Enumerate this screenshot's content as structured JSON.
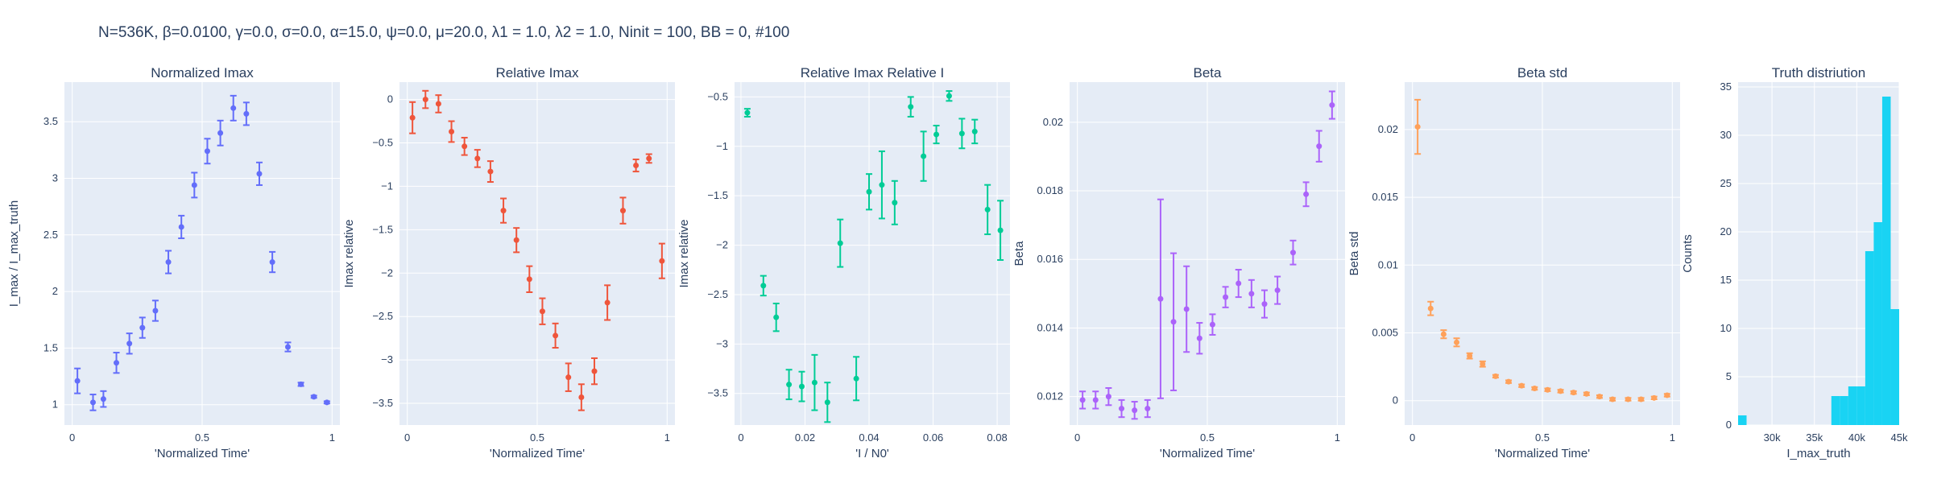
{
  "figure": {
    "title": "N=536K, β=0.0100, γ=0.0, σ=0.0,  α=15.0, ψ=0.0, μ=20.0, λ1 = 1.0, λ2 = 1.0, Ninit = 100, BB = 0, #100",
    "plot_bgcolor": "#e5ecf6",
    "grid_color": "#ffffff"
  },
  "chart_data": [
    {
      "type": "scatter",
      "title": "Normalized Imax",
      "xlabel": "'Normalized Time'",
      "ylabel": "I_max / I_max_truth",
      "color": "#636efa",
      "xlim": [
        -0.03,
        1.03
      ],
      "ylim": [
        0.82,
        3.85
      ],
      "xticks": [
        0,
        0.5,
        1
      ],
      "xtick_labels": [
        "0",
        "0.5",
        "1"
      ],
      "yticks": [
        1,
        1.5,
        2,
        2.5,
        3,
        3.5
      ],
      "ytick_labels": [
        "1",
        "1.5",
        "2",
        "2.5",
        "3",
        "3.5"
      ],
      "points": [
        {
          "x": 0.02,
          "y": 1.21,
          "err": 0.11
        },
        {
          "x": 0.08,
          "y": 1.02,
          "err": 0.07
        },
        {
          "x": 0.12,
          "y": 1.05,
          "err": 0.07
        },
        {
          "x": 0.17,
          "y": 1.37,
          "err": 0.09
        },
        {
          "x": 0.22,
          "y": 1.54,
          "err": 0.09
        },
        {
          "x": 0.27,
          "y": 1.68,
          "err": 0.09
        },
        {
          "x": 0.32,
          "y": 1.83,
          "err": 0.09
        },
        {
          "x": 0.37,
          "y": 2.26,
          "err": 0.1
        },
        {
          "x": 0.42,
          "y": 2.57,
          "err": 0.1
        },
        {
          "x": 0.47,
          "y": 2.94,
          "err": 0.11
        },
        {
          "x": 0.52,
          "y": 3.24,
          "err": 0.11
        },
        {
          "x": 0.57,
          "y": 3.4,
          "err": 0.11
        },
        {
          "x": 0.62,
          "y": 3.62,
          "err": 0.11
        },
        {
          "x": 0.67,
          "y": 3.57,
          "err": 0.1
        },
        {
          "x": 0.72,
          "y": 3.04,
          "err": 0.1
        },
        {
          "x": 0.77,
          "y": 2.26,
          "err": 0.09
        },
        {
          "x": 0.83,
          "y": 1.51,
          "err": 0.04
        },
        {
          "x": 0.88,
          "y": 1.18,
          "err": 0.015
        },
        {
          "x": 0.93,
          "y": 1.07,
          "err": 0.01
        },
        {
          "x": 0.98,
          "y": 1.02,
          "err": 0.01
        }
      ]
    },
    {
      "type": "scatter",
      "title": "Relative Imax",
      "xlabel": "'Normalized Time'",
      "ylabel": "Imax relative",
      "color": "#ef553b",
      "xlim": [
        -0.03,
        1.03
      ],
      "ylim": [
        -3.75,
        0.2
      ],
      "xticks": [
        0,
        0.5,
        1
      ],
      "xtick_labels": [
        "0",
        "0.5",
        "1"
      ],
      "yticks": [
        0,
        -0.5,
        -1,
        -1.5,
        -2,
        -2.5,
        -3,
        -3.5
      ],
      "ytick_labels": [
        "0",
        "−0.5",
        "−1",
        "−1.5",
        "−2",
        "−2.5",
        "−3",
        "−3.5"
      ],
      "points": [
        {
          "x": 0.02,
          "y": -0.21,
          "err": 0.18
        },
        {
          "x": 0.07,
          "y": 0.0,
          "err": 0.1
        },
        {
          "x": 0.12,
          "y": -0.05,
          "err": 0.1
        },
        {
          "x": 0.17,
          "y": -0.37,
          "err": 0.12
        },
        {
          "x": 0.22,
          "y": -0.54,
          "err": 0.1
        },
        {
          "x": 0.27,
          "y": -0.68,
          "err": 0.1
        },
        {
          "x": 0.32,
          "y": -0.83,
          "err": 0.12
        },
        {
          "x": 0.37,
          "y": -1.28,
          "err": 0.14
        },
        {
          "x": 0.42,
          "y": -1.62,
          "err": 0.14
        },
        {
          "x": 0.47,
          "y": -2.07,
          "err": 0.15
        },
        {
          "x": 0.52,
          "y": -2.44,
          "err": 0.15
        },
        {
          "x": 0.57,
          "y": -2.72,
          "err": 0.14
        },
        {
          "x": 0.62,
          "y": -3.2,
          "err": 0.16
        },
        {
          "x": 0.67,
          "y": -3.43,
          "err": 0.15
        },
        {
          "x": 0.72,
          "y": -3.13,
          "err": 0.15
        },
        {
          "x": 0.77,
          "y": -2.34,
          "err": 0.2
        },
        {
          "x": 0.83,
          "y": -1.28,
          "err": 0.15
        },
        {
          "x": 0.88,
          "y": -0.76,
          "err": 0.07
        },
        {
          "x": 0.93,
          "y": -0.68,
          "err": 0.05
        },
        {
          "x": 0.98,
          "y": -1.86,
          "err": 0.2
        }
      ]
    },
    {
      "type": "scatter",
      "title": "Relative Imax Relative I",
      "xlabel": "'I / N0'",
      "ylabel": "Imax relative",
      "color": "#00cc96",
      "xlim": [
        -0.002,
        0.084
      ],
      "ylim": [
        -3.82,
        -0.35
      ],
      "xticks": [
        0,
        0.02,
        0.04,
        0.06,
        0.08
      ],
      "xtick_labels": [
        "0",
        "0.02",
        "0.04",
        "0.06",
        "0.08"
      ],
      "yticks": [
        -0.5,
        -1,
        -1.5,
        -2,
        -2.5,
        -3,
        -3.5
      ],
      "ytick_labels": [
        "−0.5",
        "−1",
        "−1.5",
        "−2",
        "−2.5",
        "−3",
        "−3.5"
      ],
      "points": [
        {
          "x": 0.002,
          "y": -0.66,
          "err": 0.04
        },
        {
          "x": 0.007,
          "y": -2.41,
          "err": 0.1
        },
        {
          "x": 0.011,
          "y": -2.73,
          "err": 0.14
        },
        {
          "x": 0.015,
          "y": -3.41,
          "err": 0.15
        },
        {
          "x": 0.019,
          "y": -3.43,
          "err": 0.15
        },
        {
          "x": 0.023,
          "y": -3.39,
          "err": 0.28
        },
        {
          "x": 0.027,
          "y": -3.59,
          "err": 0.2
        },
        {
          "x": 0.031,
          "y": -1.98,
          "err": 0.24
        },
        {
          "x": 0.036,
          "y": -3.35,
          "err": 0.22
        },
        {
          "x": 0.04,
          "y": -1.46,
          "err": 0.18
        },
        {
          "x": 0.044,
          "y": -1.39,
          "err": 0.34
        },
        {
          "x": 0.048,
          "y": -1.57,
          "err": 0.22
        },
        {
          "x": 0.053,
          "y": -0.6,
          "err": 0.1
        },
        {
          "x": 0.057,
          "y": -1.1,
          "err": 0.25
        },
        {
          "x": 0.061,
          "y": -0.88,
          "err": 0.09
        },
        {
          "x": 0.065,
          "y": -0.49,
          "err": 0.05
        },
        {
          "x": 0.069,
          "y": -0.87,
          "err": 0.15
        },
        {
          "x": 0.073,
          "y": -0.85,
          "err": 0.12
        },
        {
          "x": 0.077,
          "y": -1.64,
          "err": 0.25
        },
        {
          "x": 0.081,
          "y": -1.85,
          "err": 0.3
        }
      ]
    },
    {
      "type": "scatter",
      "title": "Beta",
      "xlabel": "'Normalized Time'",
      "ylabel": "Beta",
      "color": "#ab63fa",
      "xlim": [
        -0.03,
        1.03
      ],
      "ylim": [
        0.01117,
        0.02117
      ],
      "xticks": [
        0,
        0.5,
        1
      ],
      "xtick_labels": [
        "0",
        "0.5",
        "1"
      ],
      "yticks": [
        0.012,
        0.014,
        0.016,
        0.018,
        0.02
      ],
      "ytick_labels": [
        "0.012",
        "0.014",
        "0.016",
        "0.018",
        "0.02"
      ],
      "points": [
        {
          "x": 0.02,
          "y": 0.0119,
          "err": 0.00025
        },
        {
          "x": 0.07,
          "y": 0.0119,
          "err": 0.00025
        },
        {
          "x": 0.12,
          "y": 0.012,
          "err": 0.00025
        },
        {
          "x": 0.17,
          "y": 0.01165,
          "err": 0.00025
        },
        {
          "x": 0.22,
          "y": 0.0116,
          "err": 0.00025
        },
        {
          "x": 0.27,
          "y": 0.01165,
          "err": 0.00025
        },
        {
          "x": 0.32,
          "y": 0.01485,
          "err": 0.0029
        },
        {
          "x": 0.37,
          "y": 0.01418,
          "err": 0.002
        },
        {
          "x": 0.42,
          "y": 0.01455,
          "err": 0.00125
        },
        {
          "x": 0.47,
          "y": 0.0137,
          "err": 0.00045
        },
        {
          "x": 0.52,
          "y": 0.0141,
          "err": 0.0003
        },
        {
          "x": 0.57,
          "y": 0.0149,
          "err": 0.0003
        },
        {
          "x": 0.62,
          "y": 0.0153,
          "err": 0.0004
        },
        {
          "x": 0.67,
          "y": 0.015,
          "err": 0.0004
        },
        {
          "x": 0.72,
          "y": 0.0147,
          "err": 0.0004
        },
        {
          "x": 0.77,
          "y": 0.0151,
          "err": 0.0004
        },
        {
          "x": 0.83,
          "y": 0.0162,
          "err": 0.00035
        },
        {
          "x": 0.88,
          "y": 0.0179,
          "err": 0.00035
        },
        {
          "x": 0.93,
          "y": 0.0193,
          "err": 0.00045
        },
        {
          "x": 0.98,
          "y": 0.0205,
          "err": 0.0004
        }
      ]
    },
    {
      "type": "scatter",
      "title": "Beta std",
      "xlabel": "'Normalized Time'",
      "ylabel": "Beta std",
      "color": "#ffa15a",
      "xlim": [
        -0.03,
        1.03
      ],
      "ylim": [
        -0.0018,
        0.0235
      ],
      "xticks": [
        0,
        0.5,
        1
      ],
      "xtick_labels": [
        "0",
        "0.5",
        "1"
      ],
      "yticks": [
        0,
        0.005,
        0.01,
        0.015,
        0.02
      ],
      "ytick_labels": [
        "0",
        "0.005",
        "0.01",
        "0.015",
        "0.02"
      ],
      "points": [
        {
          "x": 0.02,
          "y": 0.0202,
          "err": 0.002
        },
        {
          "x": 0.07,
          "y": 0.0068,
          "err": 0.0005
        },
        {
          "x": 0.12,
          "y": 0.0049,
          "err": 0.0003
        },
        {
          "x": 0.17,
          "y": 0.0043,
          "err": 0.0003
        },
        {
          "x": 0.22,
          "y": 0.0033,
          "err": 0.0002
        },
        {
          "x": 0.27,
          "y": 0.0027,
          "err": 0.0002
        },
        {
          "x": 0.32,
          "y": 0.0018,
          "err": 0.0001
        },
        {
          "x": 0.37,
          "y": 0.0014,
          "err": 0.0001
        },
        {
          "x": 0.42,
          "y": 0.0011,
          "err": 0.0001
        },
        {
          "x": 0.47,
          "y": 0.0009,
          "err": 0.0001
        },
        {
          "x": 0.52,
          "y": 0.0008,
          "err": 0.0001
        },
        {
          "x": 0.57,
          "y": 0.0007,
          "err": 0.0001
        },
        {
          "x": 0.62,
          "y": 0.0006,
          "err": 0.0001
        },
        {
          "x": 0.67,
          "y": 0.0005,
          "err": 0.0001
        },
        {
          "x": 0.72,
          "y": 0.0003,
          "err": 0.0001
        },
        {
          "x": 0.77,
          "y": 0.0001,
          "err": 0.0001
        },
        {
          "x": 0.83,
          "y": 0.0001,
          "err": 0.0001
        },
        {
          "x": 0.88,
          "y": 0.0001,
          "err": 0.0001
        },
        {
          "x": 0.93,
          "y": 0.0002,
          "err": 0.0001
        },
        {
          "x": 0.98,
          "y": 0.0004,
          "err": 0.0001
        }
      ]
    },
    {
      "type": "bar",
      "title": "Truth distriution",
      "xlabel": "I_max_truth",
      "ylabel": "Counts",
      "color": "#19d3f3",
      "xlim": [
        26000,
        45000
      ],
      "ylim": [
        0,
        35.5
      ],
      "xticks": [
        30000,
        35000,
        40000,
        45000
      ],
      "xtick_labels": [
        "30k",
        "35k",
        "40k",
        "45k"
      ],
      "yticks": [
        0,
        5,
        10,
        15,
        20,
        25,
        30,
        35
      ],
      "ytick_labels": [
        "0",
        "5",
        "10",
        "15",
        "20",
        "25",
        "30",
        "35"
      ],
      "bins": [
        {
          "x0": 26000,
          "x1": 27000,
          "count": 1
        },
        {
          "x0": 37000,
          "x1": 38000,
          "count": 3
        },
        {
          "x0": 38000,
          "x1": 39000,
          "count": 3
        },
        {
          "x0": 39000,
          "x1": 40000,
          "count": 4
        },
        {
          "x0": 40000,
          "x1": 41000,
          "count": 4
        },
        {
          "x0": 41000,
          "x1": 42000,
          "count": 18
        },
        {
          "x0": 42000,
          "x1": 43000,
          "count": 21
        },
        {
          "x0": 43000,
          "x1": 44000,
          "count": 34
        },
        {
          "x0": 44000,
          "x1": 45000,
          "count": 12
        }
      ]
    }
  ]
}
